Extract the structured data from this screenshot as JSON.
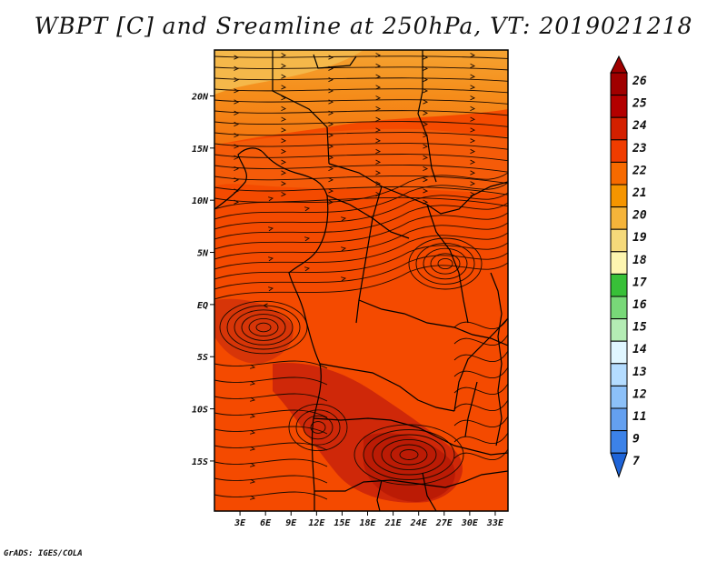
{
  "title": "WBPT [C] and Sreamline at 250hPa, VT: 2019021218",
  "credit": "GrADS: IGES/COLA",
  "map": {
    "lat_ticks": [
      {
        "value": 20,
        "label": "20N"
      },
      {
        "value": 15,
        "label": "15N"
      },
      {
        "value": 10,
        "label": "10N"
      },
      {
        "value": 5,
        "label": "5N"
      },
      {
        "value": 0,
        "label": "EQ"
      },
      {
        "value": -5,
        "label": "5S"
      },
      {
        "value": -10,
        "label": "10S"
      },
      {
        "value": -15,
        "label": "15S"
      }
    ],
    "lon_ticks": [
      {
        "value": 3,
        "label": "3E"
      },
      {
        "value": 6,
        "label": "6E"
      },
      {
        "value": 9,
        "label": "9E"
      },
      {
        "value": 12,
        "label": "12E"
      },
      {
        "value": 15,
        "label": "15E"
      },
      {
        "value": 18,
        "label": "18E"
      },
      {
        "value": 21,
        "label": "21E"
      },
      {
        "value": 24,
        "label": "24E"
      },
      {
        "value": 27,
        "label": "27E"
      },
      {
        "value": 30,
        "label": "30E"
      },
      {
        "value": 33,
        "label": "33E"
      }
    ],
    "lon_range": [
      0,
      34.5
    ],
    "lat_range": [
      -19.8,
      24.4
    ]
  },
  "colorbar": {
    "levels": [
      {
        "label": "26",
        "color": "#a00000"
      },
      {
        "label": "25",
        "color": "#b30000"
      },
      {
        "label": "24",
        "color": "#d42000"
      },
      {
        "label": "23",
        "color": "#f03c00"
      },
      {
        "label": "22",
        "color": "#f76a00"
      },
      {
        "label": "21",
        "color": "#f59500"
      },
      {
        "label": "20",
        "color": "#f5b43a"
      },
      {
        "label": "19",
        "color": "#f5d97a"
      },
      {
        "label": "18",
        "color": "#fdf5b0"
      },
      {
        "label": "17",
        "color": "#38c038"
      },
      {
        "label": "16",
        "color": "#78d878"
      },
      {
        "label": "15",
        "color": "#b4ecb4"
      },
      {
        "label": "14",
        "color": "#e0f6ff"
      },
      {
        "label": "13",
        "color": "#b4dcff"
      },
      {
        "label": "12",
        "color": "#8cc0f8"
      },
      {
        "label": "11",
        "color": "#64a0f0"
      },
      {
        "label": "9",
        "color": "#3c82e8"
      },
      {
        "label": "7",
        "color": "#1e64d8"
      }
    ]
  },
  "colors": {
    "field_main": "#f44a00",
    "field_north": "#f5a530",
    "field_hot": "#c8220a",
    "land_lines": "#000000"
  }
}
